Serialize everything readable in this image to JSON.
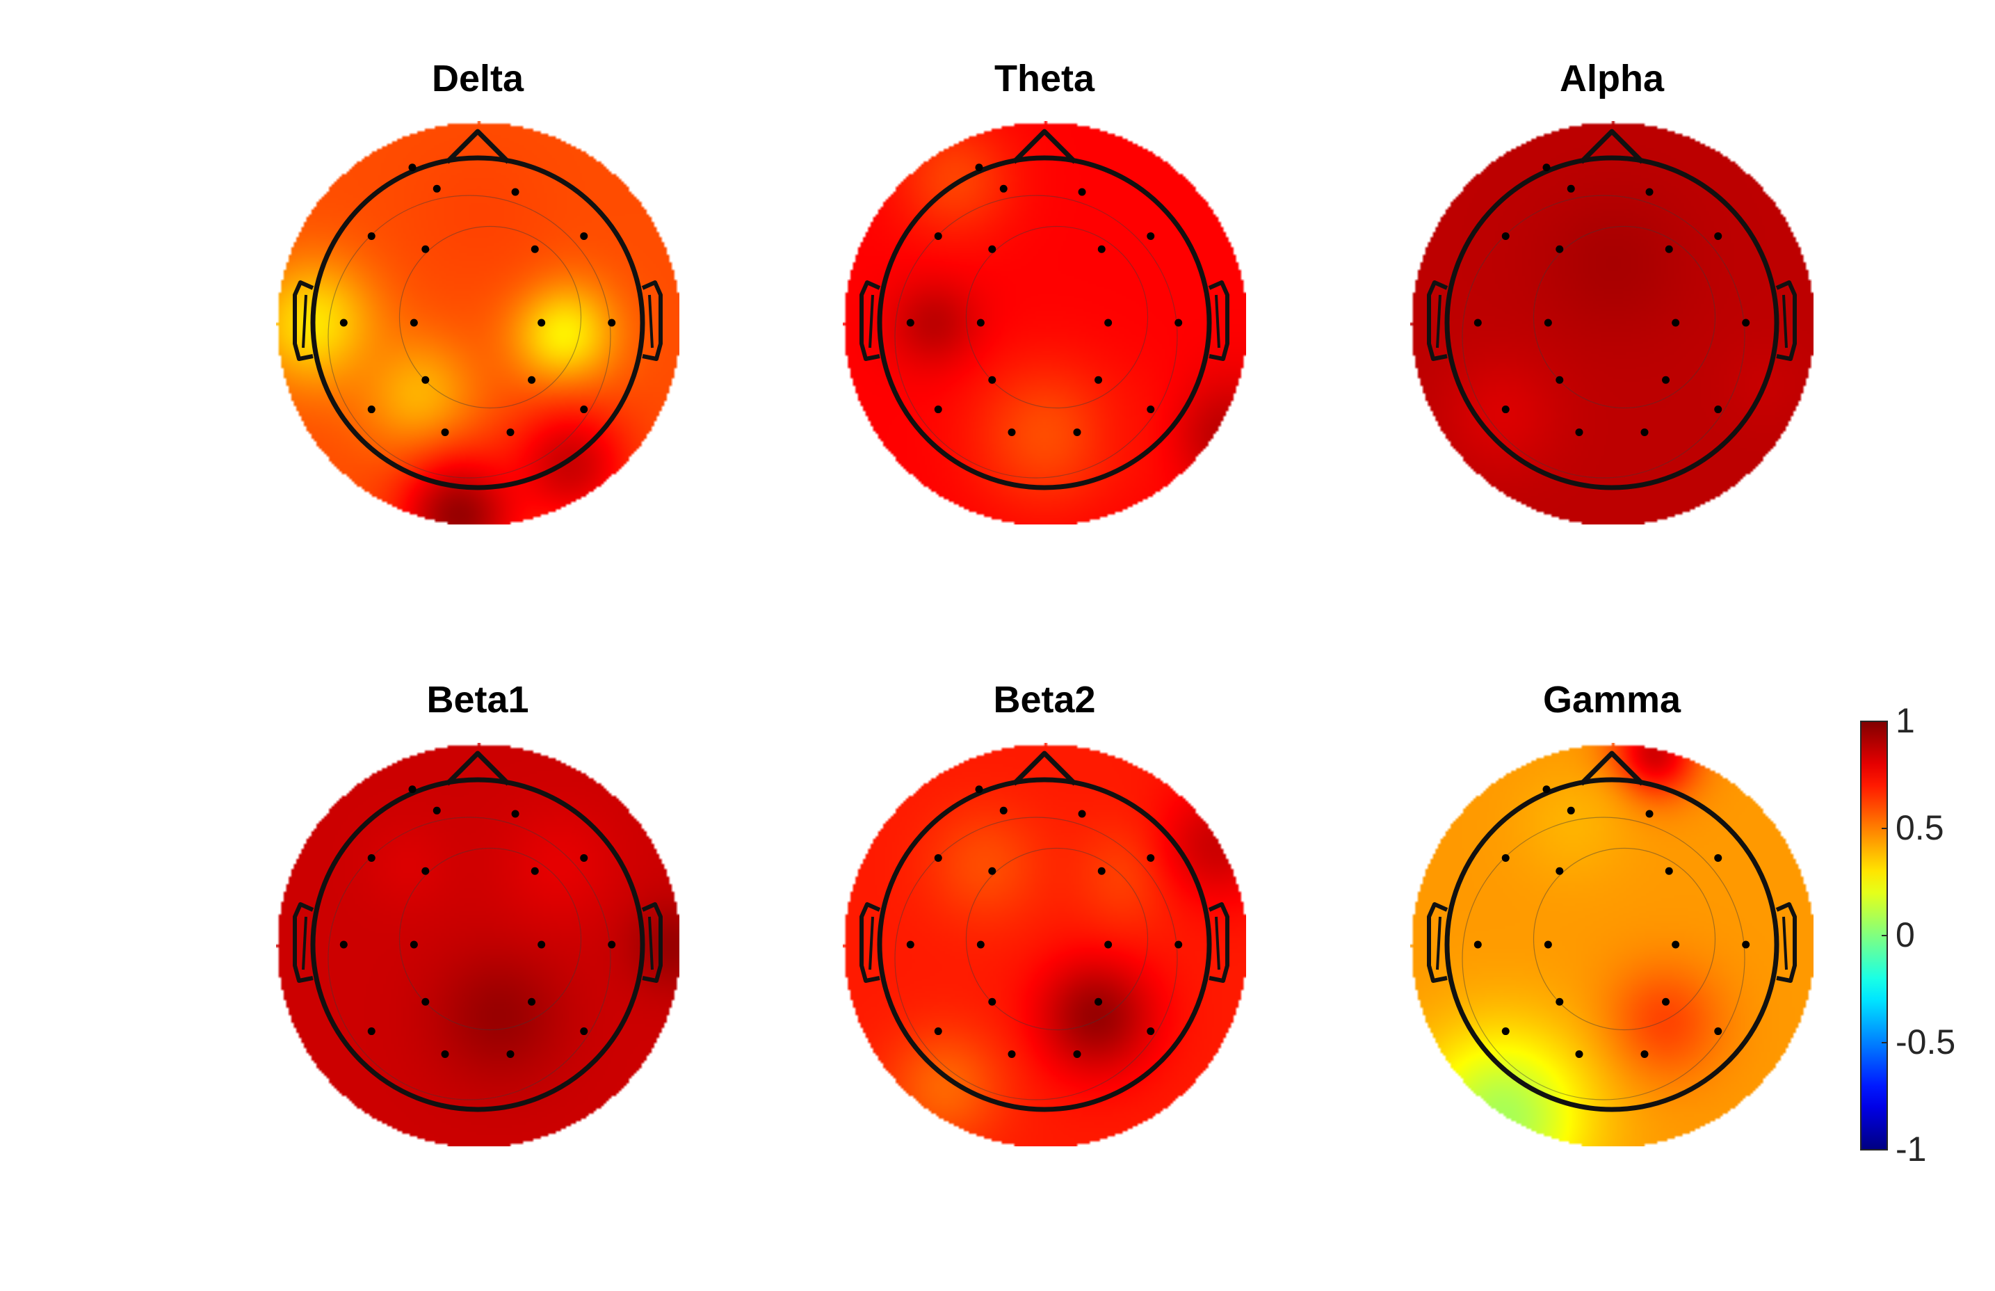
{
  "chart_data": {
    "type": "heatmap",
    "description_type": "topographic-map",
    "colormap": "jet",
    "colorbar": {
      "min": -1,
      "max": 1,
      "tick_labels": [
        "1",
        "0.5",
        "0",
        "-0.5",
        "-1"
      ],
      "tick_values": [
        1,
        0.5,
        0,
        -0.5,
        -1
      ]
    },
    "panels": [
      {
        "title": "Delta",
        "background_value": 0.6,
        "blobs": [
          {
            "u": 0.42,
            "v": 0.05,
            "value": 0.27,
            "sigma": 0.18
          },
          {
            "u": -0.82,
            "v": 0.0,
            "value": 0.3,
            "sigma": 0.22
          },
          {
            "u": -0.3,
            "v": 0.35,
            "value": 0.4,
            "sigma": 0.2
          },
          {
            "u": 0.0,
            "v": -0.55,
            "value": 0.62,
            "sigma": 0.25
          },
          {
            "u": 0.45,
            "v": 0.7,
            "value": 0.85,
            "sigma": 0.2
          },
          {
            "u": -0.1,
            "v": 0.95,
            "value": 0.95,
            "sigma": 0.2
          }
        ]
      },
      {
        "title": "Theta",
        "background_value": 0.75,
        "blobs": [
          {
            "u": -0.55,
            "v": 0.0,
            "value": 0.88,
            "sigma": 0.15
          },
          {
            "u": 0.0,
            "v": 0.55,
            "value": 0.6,
            "sigma": 0.25
          },
          {
            "u": -0.45,
            "v": -0.72,
            "value": 0.62,
            "sigma": 0.2
          },
          {
            "u": 0.6,
            "v": 0.55,
            "value": 0.7,
            "sigma": 0.2
          },
          {
            "u": 0.9,
            "v": 0.55,
            "value": 0.88,
            "sigma": 0.2
          }
        ]
      },
      {
        "title": "Alpha",
        "background_value": 0.88,
        "blobs": [
          {
            "u": 0.0,
            "v": -0.3,
            "value": 0.92,
            "sigma": 0.25
          },
          {
            "u": -0.55,
            "v": 0.45,
            "value": 0.82,
            "sigma": 0.2
          },
          {
            "u": 0.75,
            "v": 0.3,
            "value": 0.86,
            "sigma": 0.15
          }
        ]
      },
      {
        "title": "Beta1",
        "background_value": 0.85,
        "blobs": [
          {
            "u": 0.1,
            "v": 0.35,
            "value": 0.95,
            "sigma": 0.22
          },
          {
            "u": 0.4,
            "v": -0.4,
            "value": 0.8,
            "sigma": 0.2
          },
          {
            "u": -0.35,
            "v": -0.4,
            "value": 0.82,
            "sigma": 0.15
          },
          {
            "u": 0.95,
            "v": 0.0,
            "value": 0.95,
            "sigma": 0.15
          }
        ]
      },
      {
        "title": "Beta2",
        "background_value": 0.7,
        "blobs": [
          {
            "u": 0.25,
            "v": 0.35,
            "value": 0.95,
            "sigma": 0.2
          },
          {
            "u": -0.3,
            "v": -0.4,
            "value": 0.6,
            "sigma": 0.2
          },
          {
            "u": 0.4,
            "v": -0.35,
            "value": 0.62,
            "sigma": 0.18
          },
          {
            "u": -0.5,
            "v": 0.7,
            "value": 0.55,
            "sigma": 0.2
          },
          {
            "u": 0.85,
            "v": -0.5,
            "value": 0.85,
            "sigma": 0.2
          }
        ]
      },
      {
        "title": "Gamma",
        "background_value": 0.45,
        "blobs": [
          {
            "u": 0.25,
            "v": 0.38,
            "value": 0.62,
            "sigma": 0.2
          },
          {
            "u": -0.55,
            "v": 0.85,
            "value": 0.08,
            "sigma": 0.3
          },
          {
            "u": 0.2,
            "v": -0.95,
            "value": 0.85,
            "sigma": 0.15
          },
          {
            "u": -0.2,
            "v": -0.6,
            "value": 0.4,
            "sigma": 0.2
          }
        ]
      }
    ],
    "electrodes_uv": [
      [
        -0.4,
        -0.95
      ],
      [
        -0.25,
        -0.82
      ],
      [
        0.23,
        -0.8
      ],
      [
        -0.65,
        -0.53
      ],
      [
        -0.32,
        -0.45
      ],
      [
        0.35,
        -0.45
      ],
      [
        0.65,
        -0.53
      ],
      [
        -0.82,
        0.0
      ],
      [
        -0.39,
        0.0
      ],
      [
        0.39,
        0.0
      ],
      [
        0.82,
        0.0
      ],
      [
        -0.65,
        0.53
      ],
      [
        -0.32,
        0.35
      ],
      [
        0.33,
        0.35
      ],
      [
        0.65,
        0.53
      ],
      [
        -0.2,
        0.67
      ],
      [
        0.2,
        0.67
      ]
    ]
  }
}
